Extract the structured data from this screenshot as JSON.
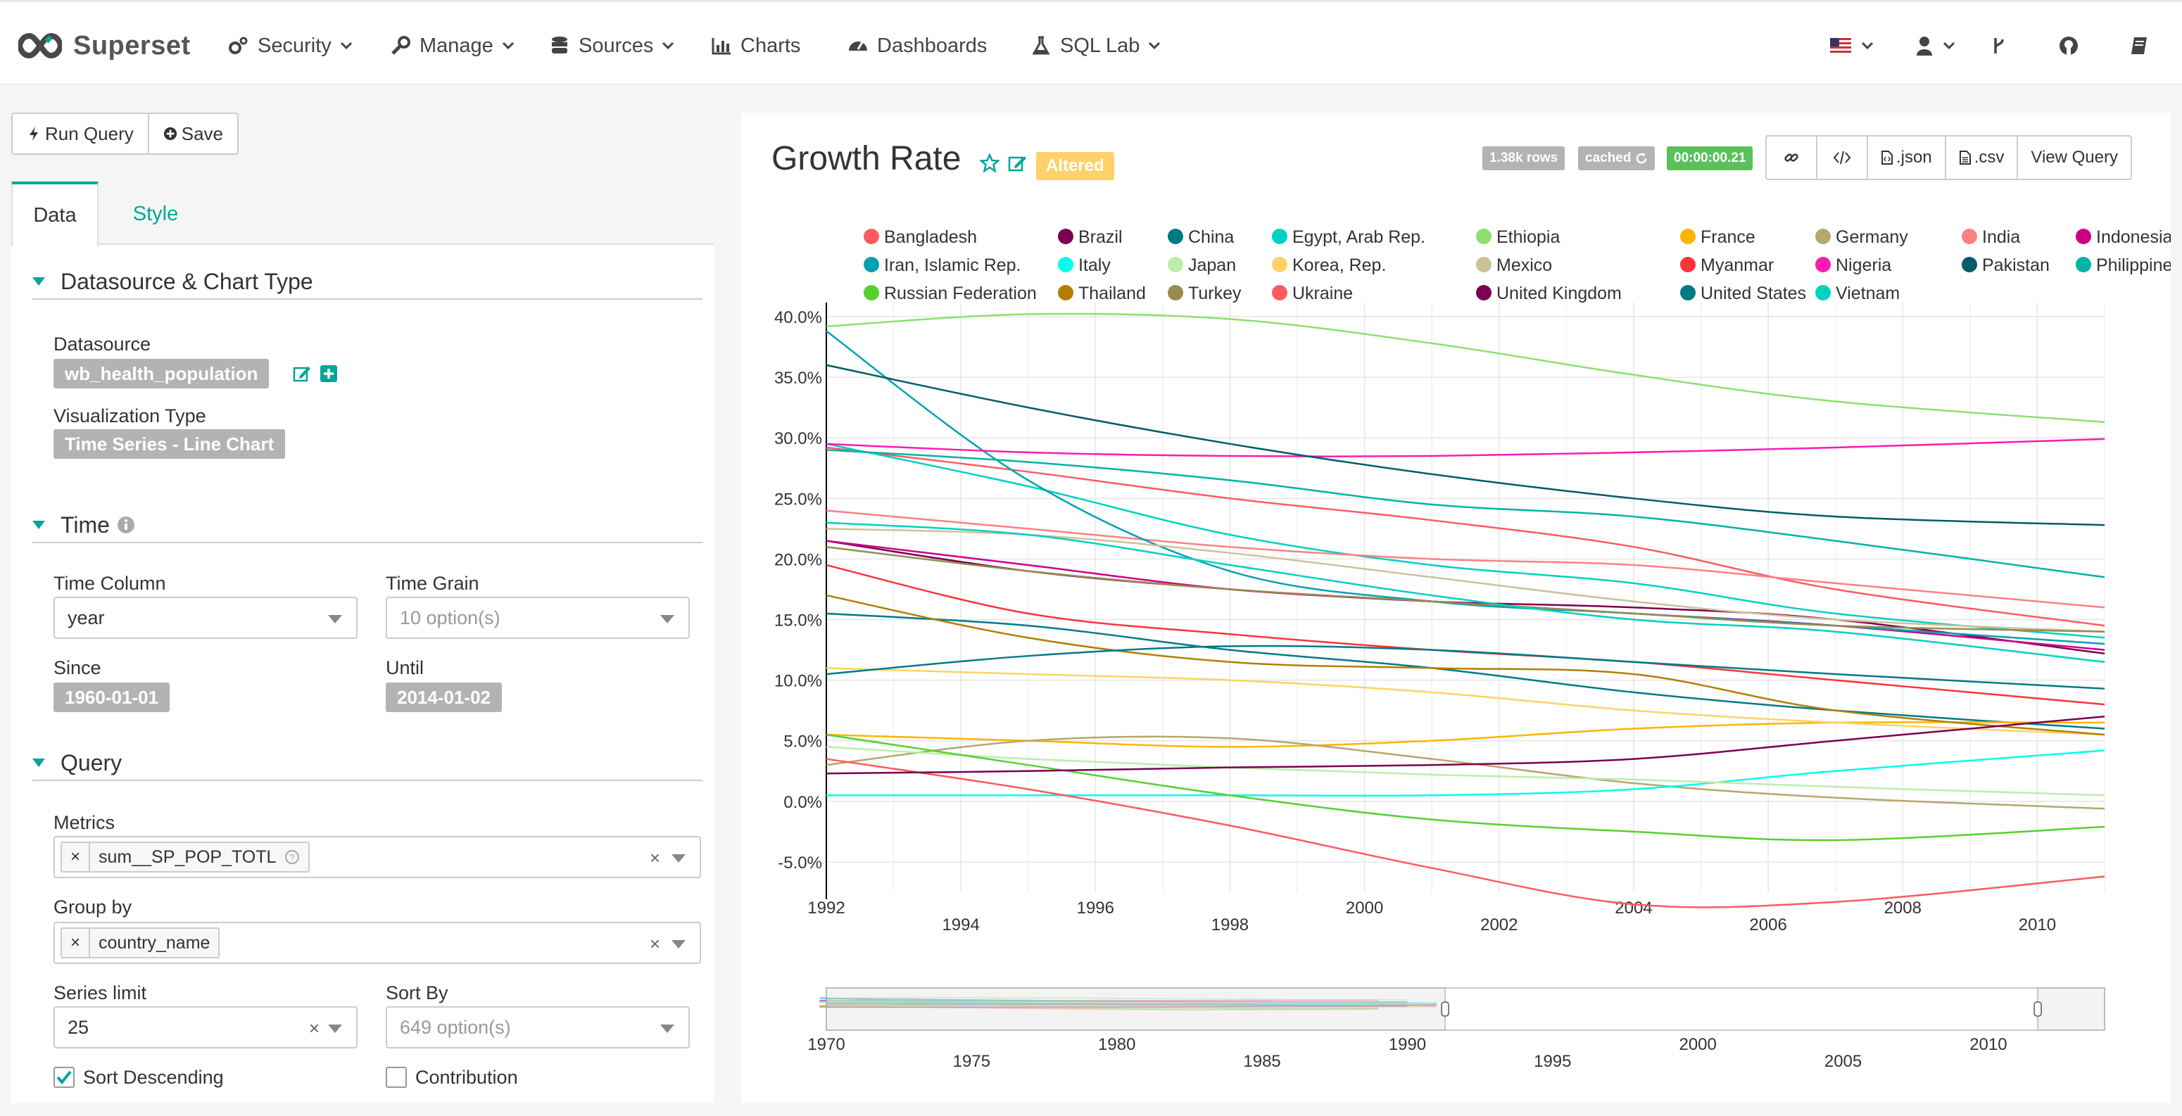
{
  "navbar": {
    "brand": "Superset",
    "items": [
      {
        "label": "Security",
        "icon": "gears-icon",
        "dropdown": true
      },
      {
        "label": "Manage",
        "icon": "wrench-icon",
        "dropdown": true
      },
      {
        "label": "Sources",
        "icon": "database-icon",
        "dropdown": true
      },
      {
        "label": "Charts",
        "icon": "bar-chart-icon",
        "dropdown": false
      },
      {
        "label": "Dashboards",
        "icon": "dashboard-icon",
        "dropdown": false
      },
      {
        "label": "SQL Lab",
        "icon": "flask-icon",
        "dropdown": true
      }
    ],
    "right_icons": [
      "us-flag-icon",
      "user-icon",
      "code-fork-icon",
      "github-icon",
      "book-icon"
    ]
  },
  "toolbar": {
    "run_query": "Run Query",
    "save": "Save"
  },
  "tabs": {
    "data": "Data",
    "style": "Style"
  },
  "datasource_section": {
    "title": "Datasource & Chart Type",
    "datasource_label": "Datasource",
    "datasource_value": "wb_health_population",
    "viz_label": "Visualization Type",
    "viz_value": "Time Series - Line Chart"
  },
  "time_section": {
    "title": "Time",
    "time_column_label": "Time Column",
    "time_column_value": "year",
    "time_grain_label": "Time Grain",
    "time_grain_placeholder": "10 option(s)",
    "since_label": "Since",
    "since_value": "1960-01-01",
    "until_label": "Until",
    "until_value": "2014-01-02"
  },
  "query_section": {
    "title": "Query",
    "metrics_label": "Metrics",
    "metrics_value": "sum__SP_POP_TOTL",
    "group_by_label": "Group by",
    "group_by_value": "country_name",
    "series_limit_label": "Series limit",
    "series_limit_value": "25",
    "sort_by_label": "Sort By",
    "sort_by_placeholder": "649 option(s)",
    "sort_descending_label": "Sort Descending",
    "sort_descending_checked": true,
    "contribution_label": "Contribution",
    "contribution_checked": false
  },
  "chart_header": {
    "title": "Growth Rate",
    "altered": "Altered",
    "rows_badge": "1.38k rows",
    "cached_badge": "cached",
    "timer_badge": "00:00:00.21",
    "buttons": {
      "json": ".json",
      "csv": ".csv",
      "view_query": "View Query"
    },
    "colors": {
      "rows": "#b3b3b3",
      "cached": "#b3b3b3",
      "timer": "#5ac15a",
      "accent": "#00a699"
    }
  },
  "chart_data": {
    "type": "line",
    "x_ticks": [
      1992,
      1994,
      1996,
      1998,
      2000,
      2002,
      2004,
      2006,
      2008,
      2010
    ],
    "xlim": [
      1992,
      2011
    ],
    "ylim": [
      -7.5,
      40
    ],
    "y_ticks": [
      -5,
      0,
      5,
      10,
      15,
      20,
      25,
      30,
      35,
      40
    ],
    "y_tick_labels": [
      "-5.0%",
      "0.0%",
      "5.0%",
      "10.0%",
      "15.0%",
      "20.0%",
      "25.0%",
      "30.0%",
      "35.0%",
      "40.0%"
    ],
    "grid": true,
    "legend_position": "top",
    "x": [
      1992,
      1995,
      1998,
      2001,
      2004,
      2007,
      2011
    ],
    "series": [
      {
        "name": "Bangladesh",
        "color": "#ff5a5f",
        "values": [
          29.2,
          27.2,
          25.0,
          23.2,
          21.0,
          17.5,
          14.5
        ]
      },
      {
        "name": "Brazil",
        "color": "#7b0051",
        "values": [
          21.5,
          19.0,
          17.5,
          16.5,
          16.0,
          15.0,
          12.2
        ]
      },
      {
        "name": "China",
        "color": "#007a87",
        "values": [
          15.5,
          14.5,
          12.5,
          11.0,
          9.0,
          7.5,
          6.0
        ]
      },
      {
        "name": "Egypt, Arab Rep.",
        "color": "#00d1c1",
        "values": [
          29.5,
          26.0,
          22.0,
          19.5,
          18.0,
          15.5,
          13.5
        ]
      },
      {
        "name": "Ethiopia",
        "color": "#8ce071",
        "values": [
          39.2,
          40.2,
          39.8,
          37.8,
          35.2,
          33.0,
          31.3
        ]
      },
      {
        "name": "France",
        "color": "#ffb400",
        "values": [
          5.5,
          5.0,
          4.5,
          5.0,
          6.0,
          6.5,
          6.5
        ]
      },
      {
        "name": "Germany",
        "color": "#b4a76c",
        "values": [
          3.0,
          5.0,
          5.2,
          3.5,
          1.5,
          0.3,
          -0.6
        ]
      },
      {
        "name": "India",
        "color": "#ff8083",
        "values": [
          24.0,
          22.5,
          21.0,
          20.0,
          19.5,
          18.0,
          16.0
        ]
      },
      {
        "name": "Indonesia",
        "color": "#cc0086",
        "values": [
          21.5,
          19.5,
          17.5,
          16.5,
          15.5,
          14.5,
          12.5
        ]
      },
      {
        "name": "Iran, Islamic Rep.",
        "color": "#00a1b3",
        "values": [
          38.8,
          26.5,
          19.0,
          16.5,
          15.5,
          14.5,
          13.0
        ]
      },
      {
        "name": "Italy",
        "color": "#00ffeb",
        "values": [
          0.5,
          0.5,
          0.5,
          0.5,
          1.0,
          2.5,
          4.2
        ]
      },
      {
        "name": "Japan",
        "color": "#bbedab",
        "values": [
          4.5,
          3.5,
          2.8,
          2.2,
          1.8,
          1.2,
          0.5
        ]
      },
      {
        "name": "Korea, Rep.",
        "color": "#ffd266",
        "values": [
          11.0,
          10.5,
          10.0,
          9.0,
          7.5,
          6.5,
          5.5
        ]
      },
      {
        "name": "Mexico",
        "color": "#cbc29a",
        "values": [
          22.5,
          22.0,
          20.5,
          18.5,
          16.5,
          15.0,
          14.0
        ]
      },
      {
        "name": "Myanmar",
        "color": "#ff3339",
        "values": [
          19.5,
          15.5,
          13.8,
          12.5,
          11.5,
          10.0,
          8.0
        ]
      },
      {
        "name": "Nigeria",
        "color": "#ff1ab1",
        "values": [
          29.5,
          28.8,
          28.5,
          28.5,
          28.8,
          29.2,
          29.9
        ]
      },
      {
        "name": "Pakistan",
        "color": "#005c66",
        "values": [
          36.0,
          32.5,
          29.5,
          27.0,
          25.0,
          23.5,
          22.8
        ]
      },
      {
        "name": "Philippines",
        "color": "#00b3a5",
        "values": [
          29.0,
          28.0,
          26.5,
          24.5,
          23.5,
          21.5,
          18.5
        ]
      },
      {
        "name": "Russian Federation",
        "color": "#55d12e",
        "values": [
          5.5,
          3.0,
          0.5,
          -1.5,
          -2.5,
          -3.2,
          -2.1
        ]
      },
      {
        "name": "Thailand",
        "color": "#b37e00",
        "values": [
          17.0,
          13.5,
          11.5,
          11.0,
          10.5,
          7.5,
          5.5
        ]
      },
      {
        "name": "Turkey",
        "color": "#988b4e",
        "values": [
          21.0,
          19.0,
          17.5,
          16.5,
          15.5,
          14.5,
          14.0
        ]
      },
      {
        "name": "Ukraine",
        "color": "#ff5a5f",
        "values": [
          3.5,
          1.0,
          -2.0,
          -5.5,
          -8.5,
          -8.3,
          -6.2
        ]
      },
      {
        "name": "United Kingdom",
        "color": "#7b0051",
        "values": [
          2.3,
          2.5,
          2.8,
          3.0,
          3.5,
          5.0,
          7.0
        ]
      },
      {
        "name": "United States",
        "color": "#007a87",
        "values": [
          10.5,
          12.0,
          12.8,
          12.5,
          11.5,
          10.5,
          9.3
        ]
      },
      {
        "name": "Vietnam",
        "color": "#00d1c1",
        "values": [
          23.0,
          22.0,
          19.5,
          17.0,
          15.0,
          14.0,
          11.5
        ]
      }
    ],
    "brush": {
      "x_ticks_top": [
        1970,
        1980,
        1990,
        2000,
        2010
      ],
      "x_ticks_bottom": [
        1975,
        1985,
        1995,
        2005
      ],
      "xlim": [
        1970,
        2014
      ],
      "selection": [
        1991.3,
        2011.7
      ]
    }
  }
}
